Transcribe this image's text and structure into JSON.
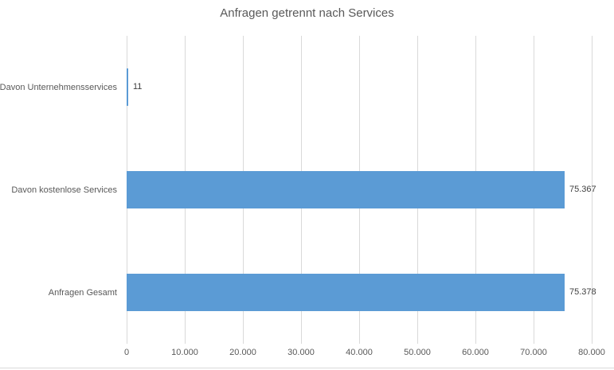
{
  "chart_data": {
    "type": "bar",
    "orientation": "horizontal",
    "title": "Anfragen getrennt nach Services",
    "categories": [
      "Davon Unternehmensservices",
      "Davon kostenlose Services",
      "Anfragen Gesamt"
    ],
    "values": [
      11,
      75367,
      75378
    ],
    "value_labels": [
      "11",
      "75.367",
      "75.378"
    ],
    "xlim": [
      0,
      80000
    ],
    "x_ticks": [
      0,
      10000,
      20000,
      30000,
      40000,
      50000,
      60000,
      70000,
      80000
    ],
    "x_tick_labels": [
      "0",
      "10.000",
      "20.000",
      "30.000",
      "40.000",
      "50.000",
      "60.000",
      "70.000",
      "80.000"
    ],
    "grid": true,
    "legend": "none",
    "colors": {
      "bar": "#5B9BD5",
      "gridline": "#D9D9D9",
      "axis_text": "#595959",
      "title_text": "#595959",
      "value_label_text": "#404040",
      "border": "#D9D9D9",
      "background": "#FFFFFF"
    }
  }
}
